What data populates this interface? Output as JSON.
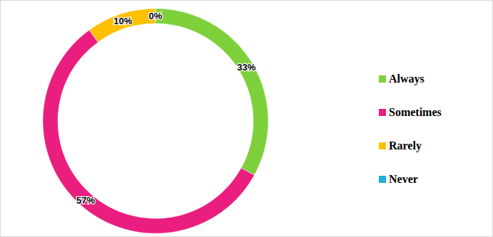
{
  "chart_data": {
    "type": "donut",
    "categories": [
      "Always",
      "Sometimes",
      "Rarely",
      "Never"
    ],
    "values": [
      33,
      57,
      10,
      0
    ],
    "value_labels": [
      "33%",
      "57%",
      "10%",
      "0%"
    ],
    "colors": [
      "#7ed03b",
      "#e91e7f",
      "#ffc000",
      "#1ab0d8"
    ],
    "data_labels": true,
    "legend": "right"
  }
}
